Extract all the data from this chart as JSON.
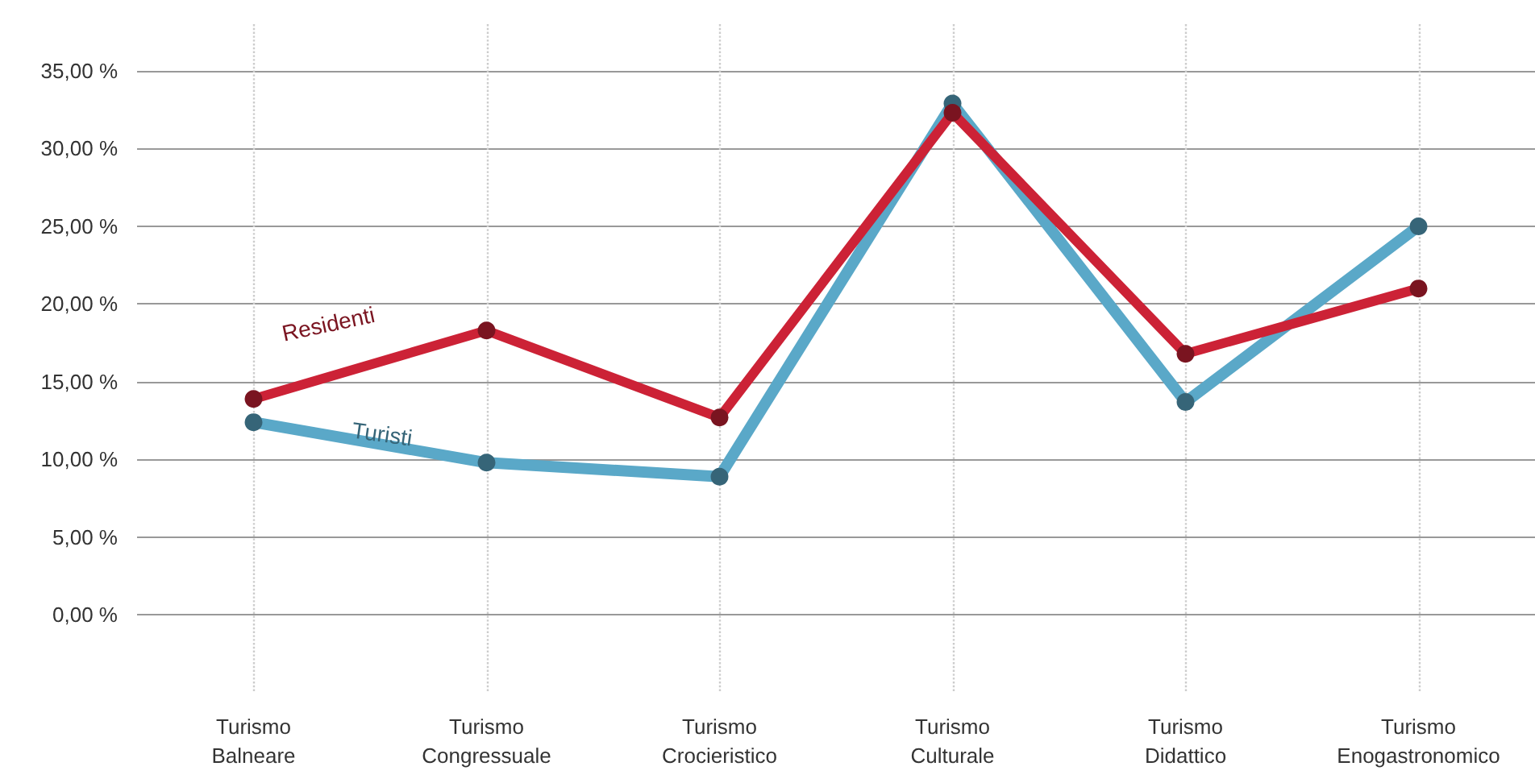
{
  "chart_data": {
    "type": "line",
    "categories": [
      "Turismo\nBalneare",
      "Turismo\nCongressuale",
      "Turismo\nCrocieristico",
      "Turismo\nCulturale",
      "Turismo\nDidattico",
      "Turismo\nEnogastronomico"
    ],
    "series": [
      {
        "name": "Turisti",
        "color": "#5aa8c8",
        "values": [
          12.4,
          9.8,
          8.9,
          32.9,
          13.7,
          25.0
        ]
      },
      {
        "name": "Residenti",
        "color": "#cc2236",
        "values": [
          13.9,
          18.3,
          12.7,
          32.3,
          16.8,
          21.0
        ]
      }
    ],
    "ylim": [
      -5,
      38
    ],
    "yticks": [
      {
        "value": 0,
        "label": "0,00 %"
      },
      {
        "value": 5,
        "label": "5,00 %"
      },
      {
        "value": 10,
        "label": "10,00 %"
      },
      {
        "value": 15,
        "label": "15,00 %"
      },
      {
        "value": 20,
        "label": "20,00 %"
      },
      {
        "value": 25,
        "label": "25,00 %"
      },
      {
        "value": 30,
        "label": "30,00 %"
      },
      {
        "value": 35,
        "label": "35,00 %"
      }
    ],
    "grid": true,
    "legend": false,
    "marker": "circle",
    "line_style": "solid"
  }
}
